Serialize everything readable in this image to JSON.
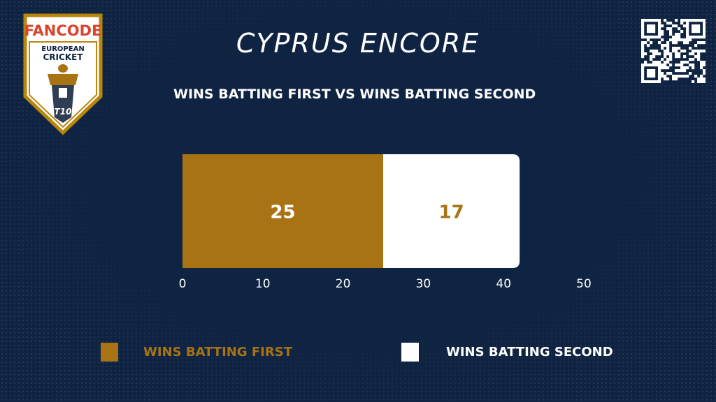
{
  "title": "CYPRUS ENCORE",
  "subtitle": "WINS BATTING FIRST VS WINS BATTING SECOND",
  "logo": {
    "brand": "FANCODE",
    "line1": "EUROPEAN",
    "line2": "CRICKET",
    "badge": "T10"
  },
  "colors": {
    "background": "#0f2342",
    "accent": "#a97313",
    "white": "#ffffff"
  },
  "icons": {
    "qr": "qr-code-icon",
    "logo": "trophy-icon"
  },
  "chart_data": {
    "type": "bar",
    "orientation": "horizontal-stacked",
    "series": [
      {
        "name": "WINS BATTING FIRST",
        "value": 25,
        "color": "#a97313",
        "label_color": "#ffffff"
      },
      {
        "name": "WINS BATTING SECOND",
        "value": 17,
        "color": "#ffffff",
        "label_color": "#a97313"
      }
    ],
    "xlim": [
      0,
      50
    ],
    "xticks": [
      "0",
      "10",
      "20",
      "30",
      "40",
      "50"
    ],
    "grid": false,
    "legend": "bottom"
  },
  "legend": [
    {
      "label": "WINS BATTING FIRST",
      "color": "#a97313"
    },
    {
      "label": "WINS BATTING SECOND",
      "color": "#ffffff"
    }
  ]
}
